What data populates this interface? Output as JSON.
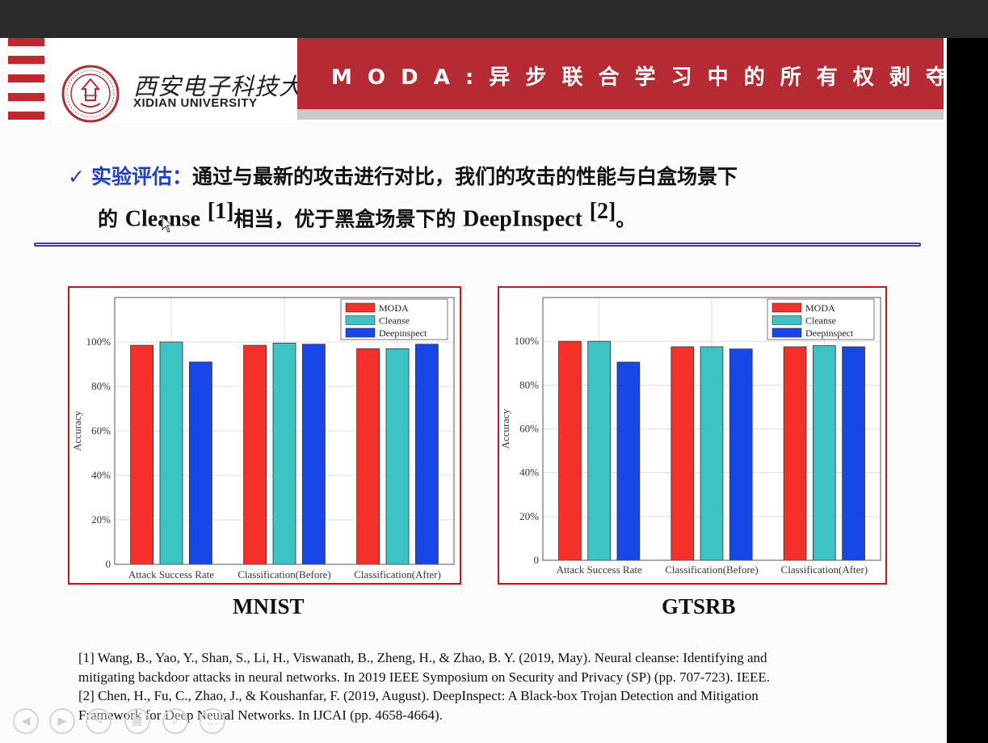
{
  "header": {
    "logo_cn": "西安电子科技大学",
    "logo_en": "XIDIAN UNIVERSITY",
    "title": "M O D A : 异 步 联 合 学 习 中 的 所 有 权 剥 夺 攻 击"
  },
  "heading": {
    "checkmark": "✓",
    "label": "实验评估：",
    "text1": "通过与最新的攻击进行对比，我们的攻击的性能与白盒场景下",
    "line2_a": "的 ",
    "cleanse": "Cleanse",
    "ref1": "[1]",
    "line2_b": "相当，优于黑盒场景下的 ",
    "deepinspect": "DeepInspect",
    "ref2": "[2]",
    "line2_end": "。"
  },
  "colors": {
    "banner": "#b62a33",
    "accent_blue": "#2340c8",
    "chart_border": "#d3121b",
    "moda": "#f5302a",
    "cleanse": "#3cc4c4",
    "deepinspect": "#1747e6"
  },
  "chart_data": [
    {
      "type": "bar",
      "caption": "MNIST",
      "ylabel": "Accuracy",
      "ylim": [
        0,
        120
      ],
      "yticks": [
        "0",
        "20%",
        "40%",
        "60%",
        "80%",
        "100%"
      ],
      "categories": [
        "Attack Success Rate",
        "Classification(Before)",
        "Classification(After)"
      ],
      "series": [
        {
          "name": "MODA",
          "values": [
            98.5,
            98.5,
            97.0
          ]
        },
        {
          "name": "Cleanse",
          "values": [
            100.0,
            99.5,
            97.0
          ]
        },
        {
          "name": "Deepinspect",
          "values": [
            91.0,
            99.0,
            99.0
          ]
        }
      ],
      "legend": "top-right",
      "grid": true
    },
    {
      "type": "bar",
      "caption": "GTSRB",
      "ylabel": "Accuracy",
      "ylim": [
        0,
        120
      ],
      "yticks": [
        "0",
        "20%",
        "40%",
        "60%",
        "80%",
        "100%"
      ],
      "categories": [
        "Attack Success Rate",
        "Classification(Before)",
        "Classification(After)"
      ],
      "series": [
        {
          "name": "MODA",
          "values": [
            100.0,
            97.5,
            97.5
          ]
        },
        {
          "name": "Cleanse",
          "values": [
            100.0,
            97.5,
            98.0
          ]
        },
        {
          "name": "Deepinspect",
          "values": [
            90.5,
            96.5,
            97.5
          ]
        }
      ],
      "legend": "top-right",
      "grid": true
    }
  ],
  "references": [
    "[1] Wang, B., Yao, Y., Shan, S., Li, H., Viswanath, B., Zheng, H., & Zhao, B. Y. (2019, May). Neural cleanse: Identifying and",
    "mitigating backdoor attacks in neural networks. In 2019 IEEE Symposium on Security and Privacy (SP) (pp. 707-723). IEEE.",
    "[2] Chen, H., Fu, C., Zhao, J., & Koushanfar, F. (2019, August). DeepInspect: A Black-box Trojan Detection and Mitigation",
    "Framework for Deep Neural Networks. In IJCAI (pp. 4658-4664)."
  ],
  "controls": {
    "prev": "◀",
    "next": "▶",
    "pen": "✎",
    "slides": "▦",
    "zoom": "⌕",
    "more": "…"
  }
}
